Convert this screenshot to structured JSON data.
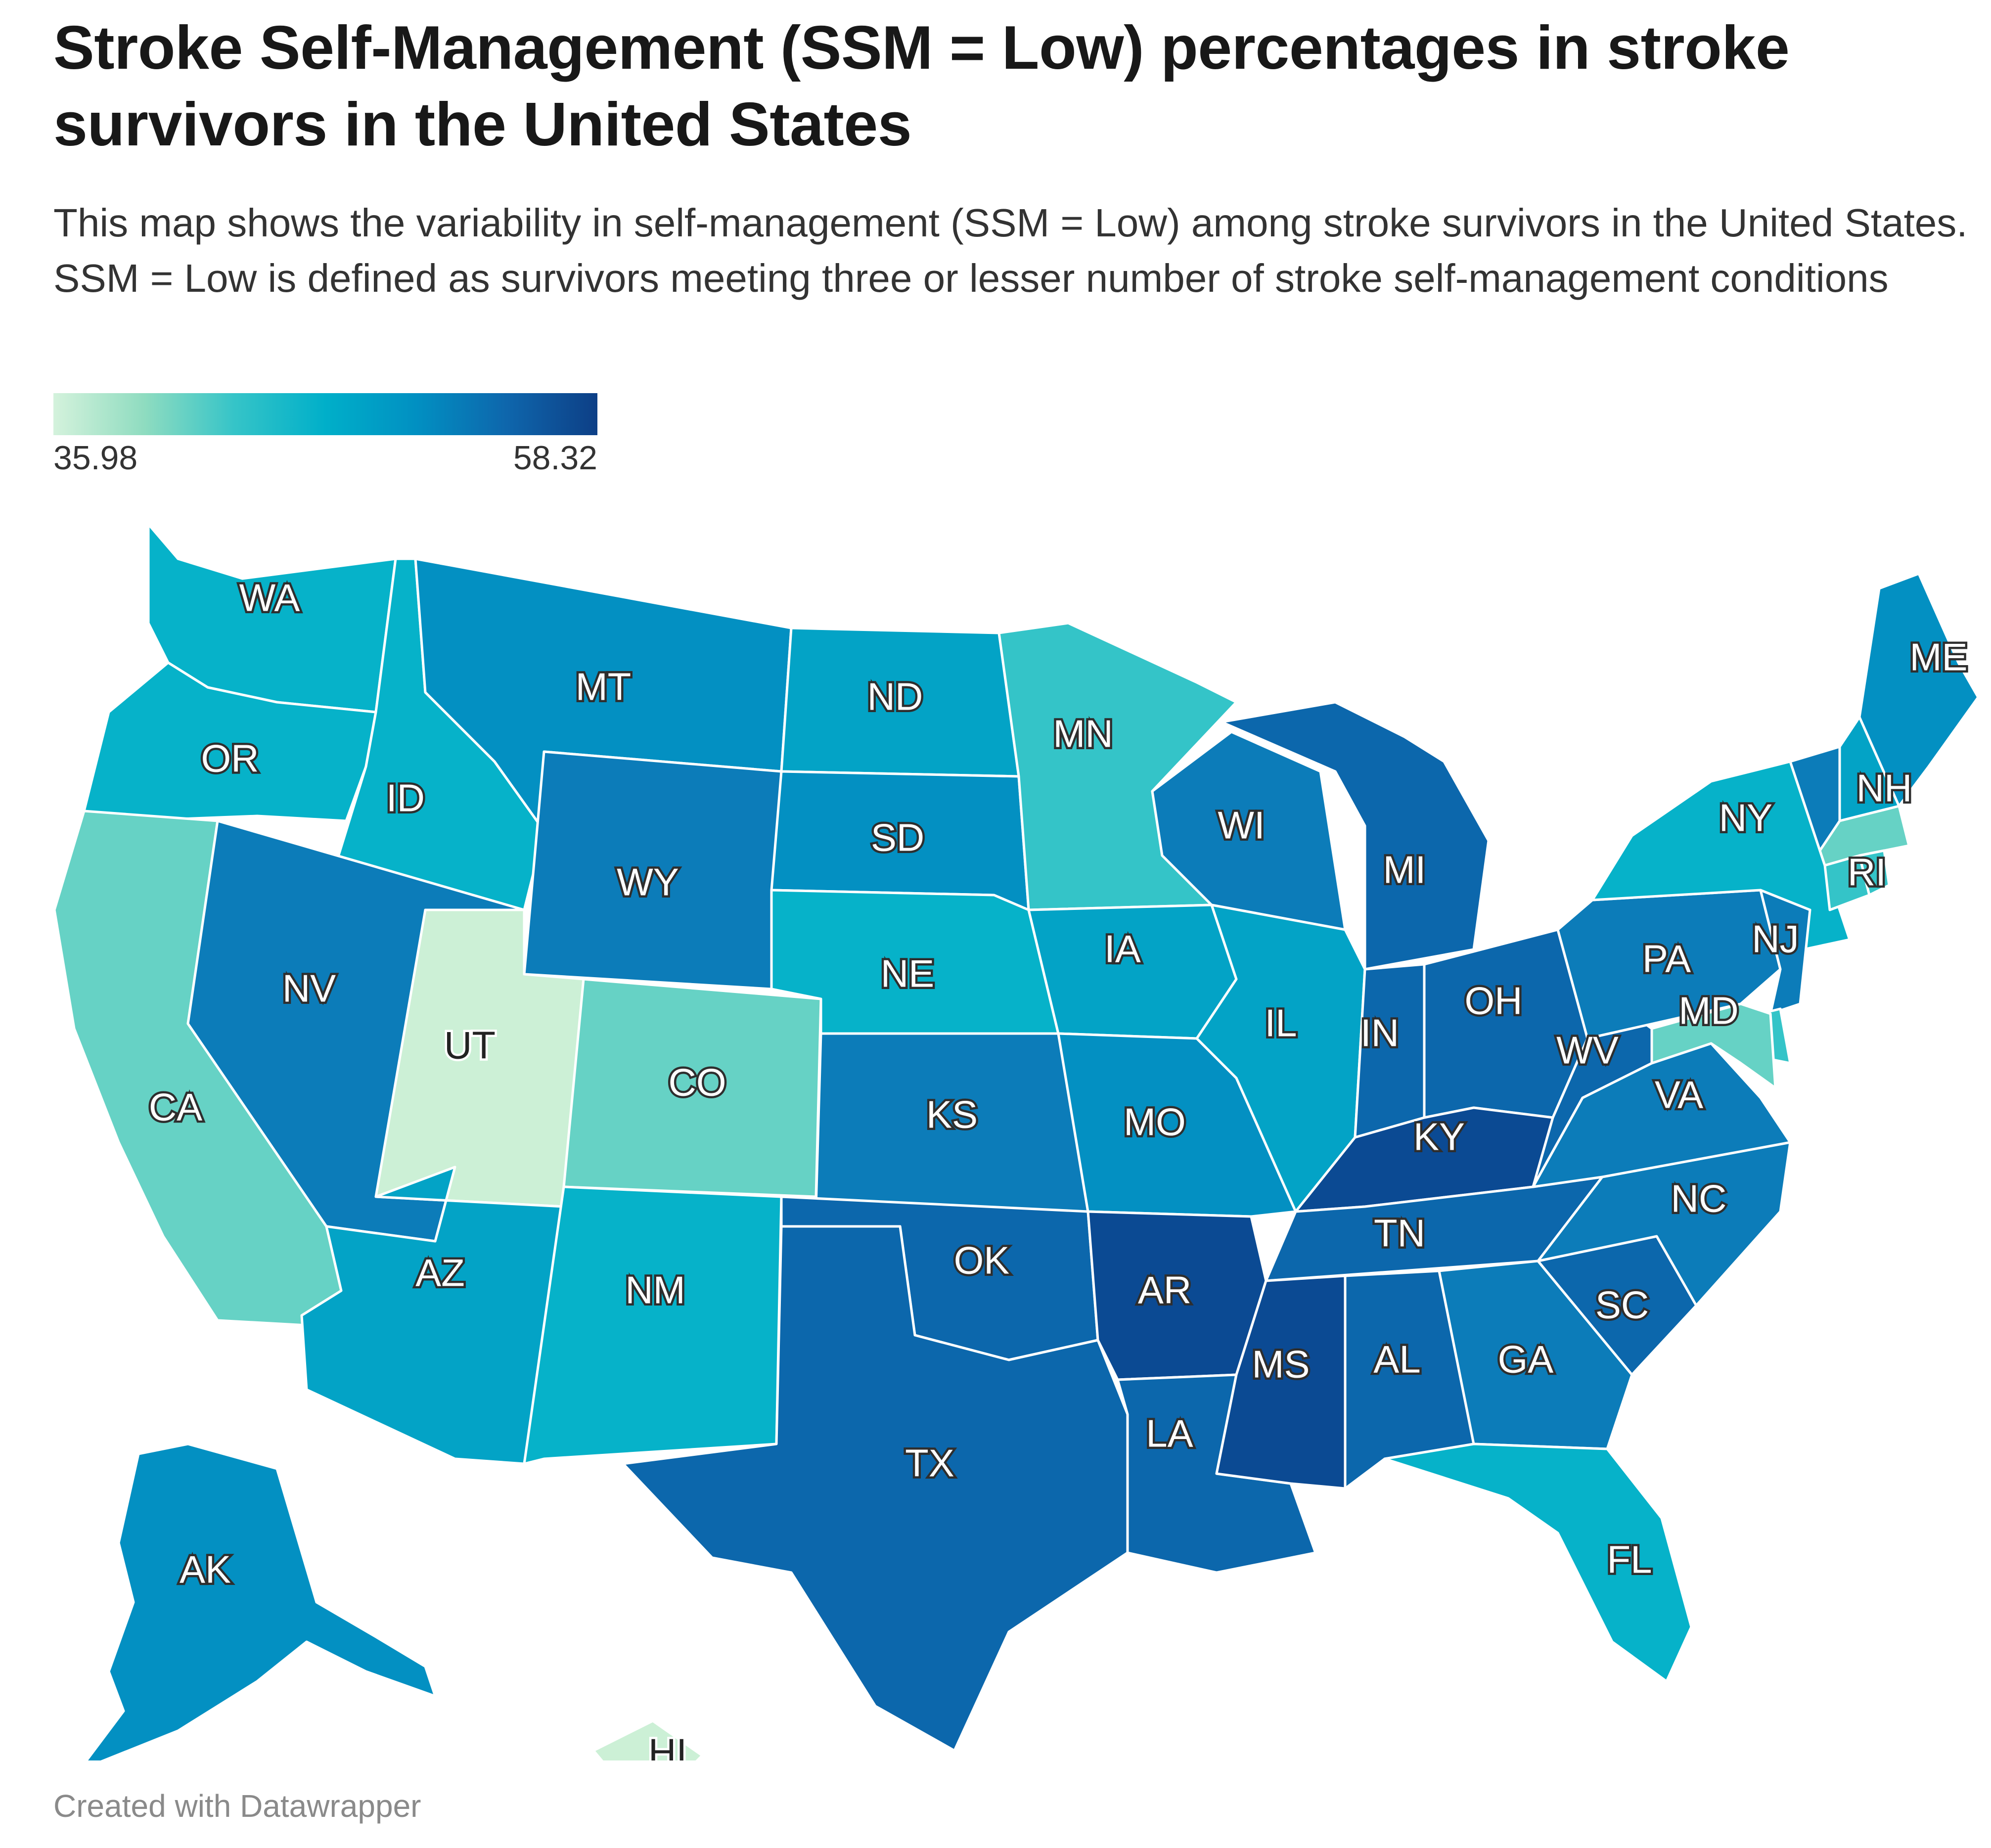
{
  "title": "Stroke Self-Management (SSM = Low) percentages in stroke survivors in the United States",
  "subtitle": "This map shows the variability in self-management (SSM = Low) among stroke survivors in the United States. SSM = Low is defined as survivors meeting three or lesser number of stroke self-management conditions",
  "legend": {
    "min_label": "35.98",
    "max_label": "58.32",
    "stops": [
      "#d4f2dc",
      "#8fdcc0",
      "#35c4c8",
      "#00afc9",
      "#0190c2",
      "#0e66ac",
      "#0d3f86"
    ]
  },
  "footer": "Created with Datawrapper",
  "colors": {
    "c1": "#ccf0d6",
    "c2": "#66d2c5",
    "c3": "#34c4c8",
    "c4": "#06b2c9",
    "c5": "#03a3c6",
    "c6": "#0390c2",
    "c7": "#0c7cb9",
    "c8": "#0c67ac",
    "c9": "#0b4a93"
  },
  "states": {
    "WA": {
      "label": "WA",
      "color": "c4"
    },
    "OR": {
      "label": "OR",
      "color": "c4"
    },
    "CA": {
      "label": "CA",
      "color": "c2"
    },
    "ID": {
      "label": "ID",
      "color": "c4"
    },
    "NV": {
      "label": "NV",
      "color": "c7"
    },
    "UT": {
      "label": "UT",
      "color": "c1"
    },
    "AZ": {
      "label": "AZ",
      "color": "c5"
    },
    "MT": {
      "label": "MT",
      "color": "c6"
    },
    "WY": {
      "label": "WY",
      "color": "c7"
    },
    "CO": {
      "label": "CO",
      "color": "c2"
    },
    "NM": {
      "label": "NM",
      "color": "c4"
    },
    "ND": {
      "label": "ND",
      "color": "c5"
    },
    "SD": {
      "label": "SD",
      "color": "c6"
    },
    "NE": {
      "label": "NE",
      "color": "c4"
    },
    "KS": {
      "label": "KS",
      "color": "c7"
    },
    "OK": {
      "label": "OK",
      "color": "c8"
    },
    "TX": {
      "label": "TX",
      "color": "c8"
    },
    "MN": {
      "label": "MN",
      "color": "c3"
    },
    "IA": {
      "label": "IA",
      "color": "c5"
    },
    "MO": {
      "label": "MO",
      "color": "c6"
    },
    "AR": {
      "label": "AR",
      "color": "c9"
    },
    "LA": {
      "label": "LA",
      "color": "c8"
    },
    "WI": {
      "label": "WI",
      "color": "c7"
    },
    "IL": {
      "label": "IL",
      "color": "c5"
    },
    "MI": {
      "label": "MI",
      "color": "c8"
    },
    "IN": {
      "label": "IN",
      "color": "c8"
    },
    "OH": {
      "label": "OH",
      "color": "c8"
    },
    "KY": {
      "label": "KY",
      "color": "c9"
    },
    "TN": {
      "label": "TN",
      "color": "c8"
    },
    "MS": {
      "label": "MS",
      "color": "c9"
    },
    "AL": {
      "label": "AL",
      "color": "c8"
    },
    "GA": {
      "label": "GA",
      "color": "c7"
    },
    "FL": {
      "label": "FL",
      "color": "c4"
    },
    "SC": {
      "label": "SC",
      "color": "c8"
    },
    "NC": {
      "label": "NC",
      "color": "c7"
    },
    "VA": {
      "label": "VA",
      "color": "c7"
    },
    "WV": {
      "label": "WV",
      "color": "c8"
    },
    "PA": {
      "label": "PA",
      "color": "c7"
    },
    "NY": {
      "label": "NY",
      "color": "c4"
    },
    "NJ": {
      "label": "NJ",
      "color": "c7"
    },
    "MD": {
      "label": "MD",
      "color": "c2"
    },
    "DE": {
      "label": "",
      "color": "c3"
    },
    "VT": {
      "label": "",
      "color": "c7"
    },
    "NH": {
      "label": "NH",
      "color": "c5"
    },
    "ME": {
      "label": "ME",
      "color": "c6"
    },
    "MA": {
      "label": "",
      "color": "c2"
    },
    "CT": {
      "label": "",
      "color": "c3"
    },
    "RI": {
      "label": "RI",
      "color": "c3"
    },
    "AK": {
      "label": "AK",
      "color": "c6"
    },
    "HI": {
      "label": "HI",
      "color": "c1"
    }
  }
}
